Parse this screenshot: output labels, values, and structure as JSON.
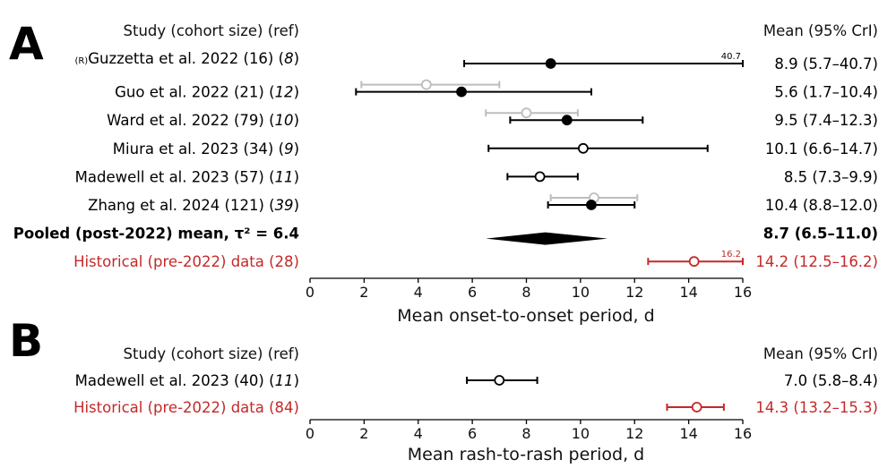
{
  "chart_data": [
    {
      "type": "forest",
      "panel": "A",
      "header_left": "Study (cohort size) (ref)",
      "header_right": "Mean (95% CrI)",
      "xlabel": "Mean onset-to-onset period, d",
      "xlim": [
        0,
        16
      ],
      "xticks": [
        0,
        2,
        4,
        6,
        8,
        10,
        12,
        14,
        16
      ],
      "colors": {
        "main": "#000000",
        "secondary": "#bdbdbd",
        "historical": "#c62828"
      },
      "rows": [
        {
          "prefix": "(R)",
          "name": "Guzzetta et al. 2022 (16)",
          "ref": "8",
          "mean": 8.9,
          "lo": 5.7,
          "hi": 40.7,
          "marker": "filled",
          "color": "main",
          "ci_text": "8.9 (5.7–40.7)",
          "clip_label": "40.7"
        },
        {
          "name": "Guo et al. 2022 (21)",
          "ref": "12",
          "mean": 5.6,
          "lo": 1.7,
          "hi": 10.4,
          "marker": "filled",
          "color": "main",
          "ci_text": "5.6 (1.7–10.4)",
          "secondary": {
            "mean": 4.3,
            "lo": 1.9,
            "hi": 7.0,
            "marker": "open"
          }
        },
        {
          "name": "Ward et al. 2022 (79)",
          "ref": "10",
          "mean": 9.5,
          "lo": 7.4,
          "hi": 12.3,
          "marker": "filled",
          "color": "main",
          "ci_text": "9.5 (7.4–12.3)",
          "secondary": {
            "mean": 8.0,
            "lo": 6.5,
            "hi": 9.9,
            "marker": "open"
          }
        },
        {
          "name": "Miura et al. 2023 (34)",
          "ref": "9",
          "mean": 10.1,
          "lo": 6.6,
          "hi": 14.7,
          "marker": "open",
          "color": "main",
          "ci_text": "10.1 (6.6–14.7)"
        },
        {
          "name": "Madewell et al. 2023 (57)",
          "ref": "11",
          "mean": 8.5,
          "lo": 7.3,
          "hi": 9.9,
          "marker": "open",
          "color": "main",
          "ci_text": "8.5 (7.3–9.9)"
        },
        {
          "name": "Zhang et al. 2024 (121)",
          "ref": "39",
          "mean": 10.4,
          "lo": 8.8,
          "hi": 12.0,
          "marker": "filled",
          "color": "main",
          "ci_text": "10.4 (8.8–12.0)",
          "secondary": {
            "mean": 10.5,
            "lo": 8.9,
            "hi": 12.1,
            "marker": "open"
          }
        },
        {
          "name": "Pooled (post-2022) mean, τ² = 6.4",
          "bold": true,
          "mean": 8.7,
          "lo": 6.5,
          "hi": 11.0,
          "marker": "diamond",
          "color": "main",
          "ci_text": "8.7 (6.5–11.0)"
        },
        {
          "name": "Historical (pre-2022) data (28)",
          "mean": 14.2,
          "lo": 12.5,
          "hi": 16.2,
          "marker": "open",
          "color": "historical",
          "ci_text": "14.2 (12.5–16.2)",
          "clip_label": "16.2"
        }
      ]
    },
    {
      "type": "forest",
      "panel": "B",
      "header_left": "Study (cohort size) (ref)",
      "header_right": "Mean (95% CrI)",
      "xlabel": "Mean rash-to-rash period, d",
      "xlim": [
        0,
        16
      ],
      "xticks": [
        0,
        2,
        4,
        6,
        8,
        10,
        12,
        14,
        16
      ],
      "colors": {
        "main": "#000000",
        "historical": "#c62828"
      },
      "rows": [
        {
          "name": "Madewell et al. 2023 (40)",
          "ref": "11",
          "mean": 7.0,
          "lo": 5.8,
          "hi": 8.4,
          "marker": "open",
          "color": "main",
          "ci_text": "7.0 (5.8–8.4)"
        },
        {
          "name": "Historical (pre-2022) data (84)",
          "mean": 14.3,
          "lo": 13.2,
          "hi": 15.3,
          "marker": "open",
          "color": "historical",
          "ci_text": "14.3 (13.2–15.3)"
        }
      ]
    }
  ]
}
